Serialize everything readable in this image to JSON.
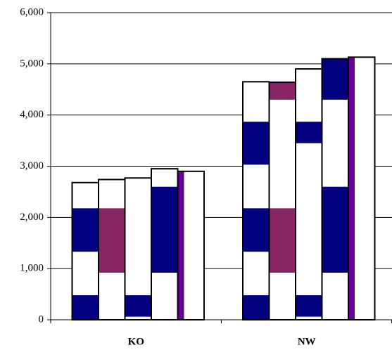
{
  "chart_data": {
    "type": "stacked-bars",
    "categories": [
      "KO",
      "NW"
    ],
    "ylim": [
      0,
      6000
    ],
    "yticks": [
      0,
      {
        "value": 1000,
        "label": "1,000"
      },
      {
        "value": 2000,
        "label": "2,000"
      },
      {
        "value": 3000,
        "label": "3,000"
      },
      {
        "value": 4000,
        "label": "4,000"
      },
      {
        "value": 5000,
        "label": "5,000"
      },
      {
        "value": 6000,
        "label": "6,000"
      }
    ],
    "grid": true,
    "stacks": [
      [
        {
          "segments": [
            {
              "value": 480,
              "color": "#000080"
            },
            {
              "value": 850,
              "color": "#ffffff"
            },
            {
              "value": 850,
              "color": "#000080"
            },
            {
              "value": 500,
              "color": "#ffffff"
            }
          ]
        },
        {
          "segments": [
            {
              "value": 920,
              "color": "#ffffff"
            },
            {
              "value": 1260,
              "color": "#862464"
            },
            {
              "value": 560,
              "color": "#ffffff"
            }
          ]
        },
        {
          "segments": [
            {
              "value": 60,
              "color": "#ffffff"
            },
            {
              "value": 420,
              "color": "#000080"
            },
            {
              "value": 2290,
              "color": "#ffffff"
            }
          ]
        },
        {
          "segments": [
            {
              "value": 920,
              "color": "#ffffff"
            },
            {
              "value": 1680,
              "color": "#000080"
            },
            {
              "value": 350,
              "color": "#ffffff"
            }
          ]
        },
        {
          "segments": [
            {
              "value": 2900,
              "color": "#ffffff"
            }
          ],
          "stripe": "#660099"
        }
      ],
      [
        {
          "segments": [
            {
              "value": 480,
              "color": "#000080"
            },
            {
              "value": 850,
              "color": "#ffffff"
            },
            {
              "value": 850,
              "color": "#000080"
            },
            {
              "value": 850,
              "color": "#ffffff"
            },
            {
              "value": 840,
              "color": "#000080"
            },
            {
              "value": 780,
              "color": "#ffffff"
            }
          ]
        },
        {
          "segments": [
            {
              "value": 920,
              "color": "#ffffff"
            },
            {
              "value": 1260,
              "color": "#862464"
            },
            {
              "value": 2120,
              "color": "#ffffff"
            },
            {
              "value": 340,
              "color": "#862464"
            }
          ]
        },
        {
          "segments": [
            {
              "value": 60,
              "color": "#ffffff"
            },
            {
              "value": 420,
              "color": "#000080"
            },
            {
              "value": 2970,
              "color": "#ffffff"
            },
            {
              "value": 420,
              "color": "#000080"
            },
            {
              "value": 1030,
              "color": "#ffffff"
            }
          ]
        },
        {
          "segments": [
            {
              "value": 920,
              "color": "#ffffff"
            },
            {
              "value": 1680,
              "color": "#000080"
            },
            {
              "value": 1700,
              "color": "#ffffff"
            },
            {
              "value": 800,
              "color": "#000080"
            }
          ]
        },
        {
          "segments": [
            {
              "value": 5130,
              "color": "#ffffff"
            }
          ],
          "stripe": "#660099"
        }
      ]
    ]
  }
}
